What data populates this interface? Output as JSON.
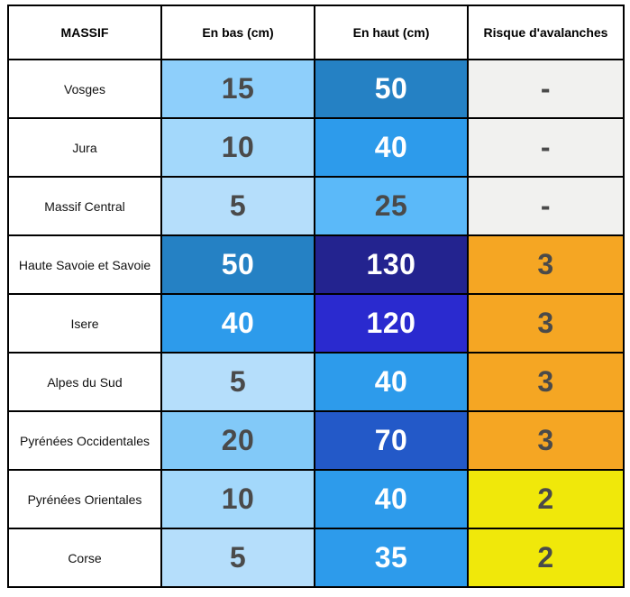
{
  "chart_data": {
    "type": "table",
    "title": "",
    "columns": [
      "MASSIF",
      "En bas (cm)",
      "En haut (cm)",
      "Risque d'avalanches"
    ],
    "rows": [
      [
        "Vosges",
        15,
        50,
        "-"
      ],
      [
        "Jura",
        10,
        40,
        "-"
      ],
      [
        "Massif Central",
        5,
        25,
        "-"
      ],
      [
        "Haute Savoie et Savoie",
        50,
        130,
        3
      ],
      [
        "Isere",
        40,
        120,
        3
      ],
      [
        "Alpes du Sud",
        5,
        40,
        3
      ],
      [
        "Pyrénées Occidentales",
        20,
        70,
        3
      ],
      [
        "Pyrénées Orientales",
        10,
        40,
        2
      ],
      [
        "Corse",
        5,
        35,
        2
      ]
    ]
  },
  "colors": {
    "border": "#000000",
    "header_bg": "#ffffff",
    "dark_number_text": "#4A4A4A",
    "white_number_text": "#FFFFFF",
    "no_risk_bg": "#F1F1EF",
    "risk_3_bg": "#F5A623",
    "risk_2_bg": "#F0E80A"
  },
  "table": {
    "headers": {
      "massif": "MASSIF",
      "en_bas": "En bas (cm)",
      "en_haut": "En haut (cm)",
      "risque": "Risque d'avalanches"
    },
    "rows": [
      {
        "massif": "Vosges",
        "en_bas": "15",
        "en_bas_bg": "#8ECFFB",
        "en_bas_fg": "#4A4A4A",
        "en_haut": "50",
        "en_haut_bg": "#2581C4",
        "en_haut_fg": "#FFFFFF",
        "risque": "-",
        "risque_bg": "#F1F1EF",
        "risque_fg": "#4A4A4A"
      },
      {
        "massif": "Jura",
        "en_bas": "10",
        "en_bas_bg": "#A3D8FB",
        "en_bas_fg": "#4A4A4A",
        "en_haut": "40",
        "en_haut_bg": "#2D9BEB",
        "en_haut_fg": "#FFFFFF",
        "risque": "-",
        "risque_bg": "#F1F1EF",
        "risque_fg": "#4A4A4A"
      },
      {
        "massif": "Massif Central",
        "en_bas": "5",
        "en_bas_bg": "#B5DEFB",
        "en_bas_fg": "#4A4A4A",
        "en_haut": "25",
        "en_haut_bg": "#5BB9F9",
        "en_haut_fg": "#4A4A4A",
        "risque": "-",
        "risque_bg": "#F1F1EF",
        "risque_fg": "#4A4A4A"
      },
      {
        "massif": "Haute Savoie et Savoie",
        "en_bas": "50",
        "en_bas_bg": "#2581C4",
        "en_bas_fg": "#FFFFFF",
        "en_haut": "130",
        "en_haut_bg": "#23238F",
        "en_haut_fg": "#FFFFFF",
        "risque": "3",
        "risque_bg": "#F5A623",
        "risque_fg": "#4A4A4A"
      },
      {
        "massif": "Isere",
        "en_bas": "40",
        "en_bas_bg": "#2D9BEB",
        "en_bas_fg": "#FFFFFF",
        "en_haut": "120",
        "en_haut_bg": "#2A2ACF",
        "en_haut_fg": "#FFFFFF",
        "risque": "3",
        "risque_bg": "#F5A623",
        "risque_fg": "#4A4A4A"
      },
      {
        "massif": "Alpes du Sud",
        "en_bas": "5",
        "en_bas_bg": "#B5DEFB",
        "en_bas_fg": "#4A4A4A",
        "en_haut": "40",
        "en_haut_bg": "#2D9BEB",
        "en_haut_fg": "#FFFFFF",
        "risque": "3",
        "risque_bg": "#F5A623",
        "risque_fg": "#4A4A4A"
      },
      {
        "massif": "Pyrénées Occidentales",
        "en_bas": "20",
        "en_bas_bg": "#82C9F8",
        "en_bas_fg": "#4A4A4A",
        "en_haut": "70",
        "en_haut_bg": "#2359C8",
        "en_haut_fg": "#FFFFFF",
        "risque": "3",
        "risque_bg": "#F5A623",
        "risque_fg": "#4A4A4A"
      },
      {
        "massif": "Pyrénées Orientales",
        "en_bas": "10",
        "en_bas_bg": "#A3D8FB",
        "en_bas_fg": "#4A4A4A",
        "en_haut": "40",
        "en_haut_bg": "#2D9BEB",
        "en_haut_fg": "#FFFFFF",
        "risque": "2",
        "risque_bg": "#F0E80A",
        "risque_fg": "#4A4A4A"
      },
      {
        "massif": "Corse",
        "en_bas": "5",
        "en_bas_bg": "#B5DEFB",
        "en_bas_fg": "#4A4A4A",
        "en_haut": "35",
        "en_haut_bg": "#2D9BEB",
        "en_haut_fg": "#FFFFFF",
        "risque": "2",
        "risque_bg": "#F0E80A",
        "risque_fg": "#4A4A4A"
      }
    ]
  }
}
